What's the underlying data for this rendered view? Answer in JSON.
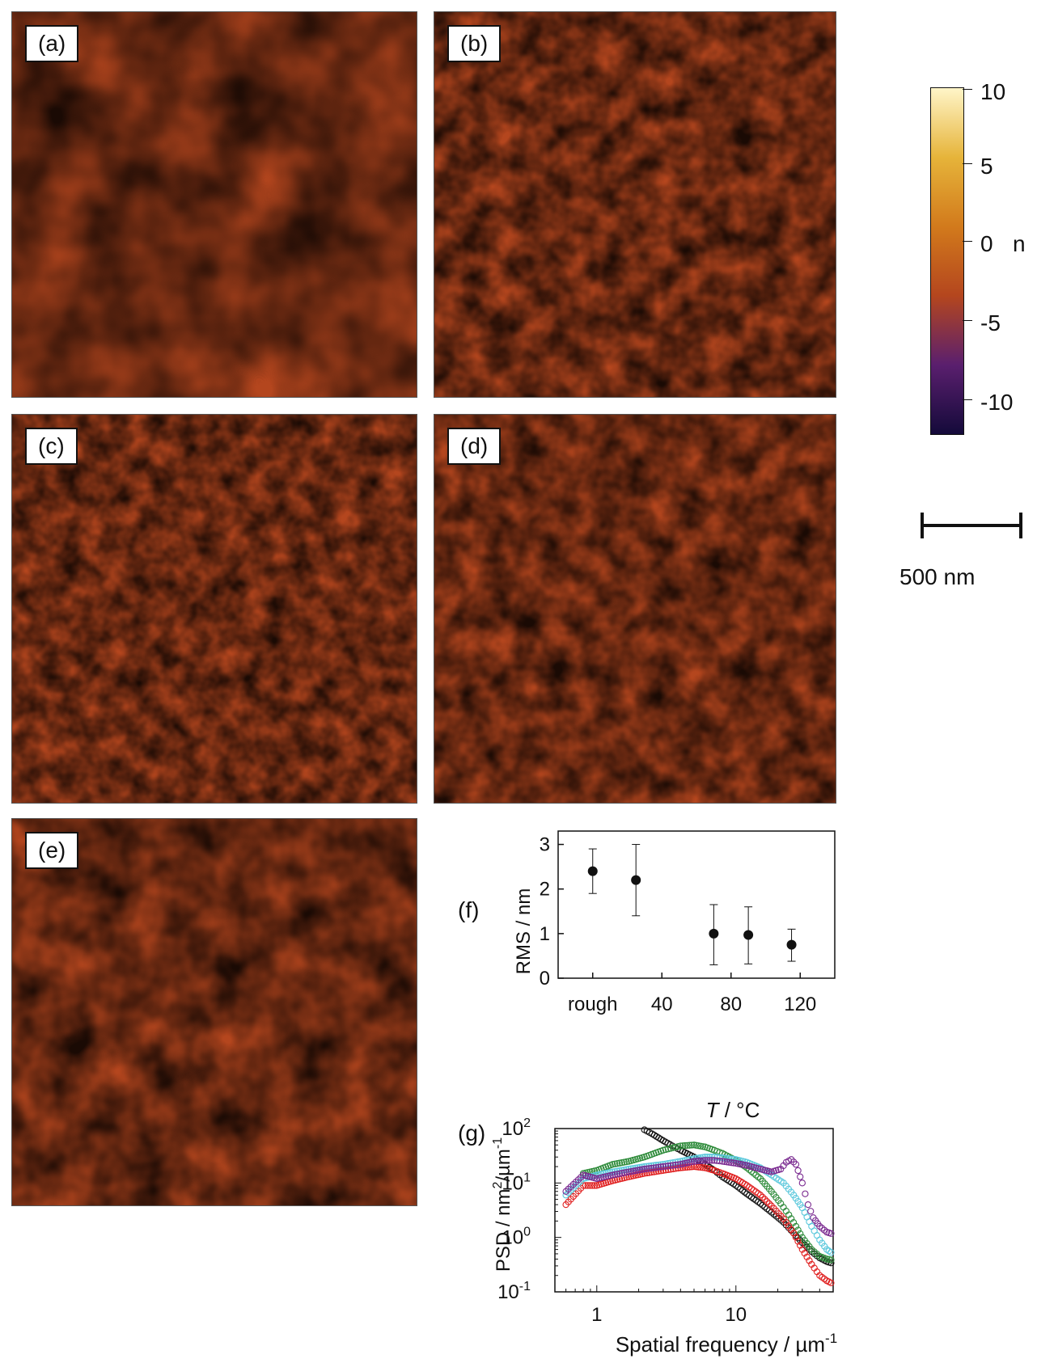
{
  "panels": [
    {
      "label": "(a)"
    },
    {
      "label": "(b)"
    },
    {
      "label": "(c)"
    },
    {
      "label": "(d)"
    },
    {
      "label": "(e)"
    }
  ],
  "colorbar": {
    "ticks": [
      "10",
      "5",
      "0",
      "-5",
      "-10"
    ],
    "unit_fragment": "n",
    "colors": [
      "#140a3a",
      "#5a1f6e",
      "#b4461e",
      "#d27a1c",
      "#e6b43a",
      "#fff5c8"
    ]
  },
  "scalebar": {
    "label": "500 nm"
  },
  "chart_data": [
    {
      "type": "scatter",
      "panel_label": "(f)",
      "ylabel": "RMS / nm",
      "xlabel": "T / °C",
      "xlabel_italic": "T",
      "xlabel_rest": " / °C",
      "x_tick_labels": [
        "rough",
        "40",
        "80",
        "120"
      ],
      "y_tick_labels": [
        "0",
        "1",
        "2",
        "3"
      ],
      "ylim": [
        0,
        3.3
      ],
      "xlim": [
        -20,
        140
      ],
      "points": [
        {
          "x": "rough",
          "y": 2.4,
          "err_low": 1.9,
          "err_high": 2.9
        },
        {
          "x": 25,
          "y": 2.2,
          "err_low": 1.4,
          "err_high": 3.0
        },
        {
          "x": 70,
          "y": 1.0,
          "err_low": 0.3,
          "err_high": 1.65
        },
        {
          "x": 90,
          "y": 0.97,
          "err_low": 0.32,
          "err_high": 1.6
        },
        {
          "x": 115,
          "y": 0.75,
          "err_low": 0.38,
          "err_high": 1.1
        }
      ]
    },
    {
      "type": "scatter",
      "panel_label": "(g)",
      "xlabel": "Spatial frequency / µm",
      "xlabel_sup": "-1",
      "ylabel_parts": [
        "PSD / nm",
        "2",
        "/µm",
        "-1"
      ],
      "x_scale": "log",
      "y_scale": "log",
      "xlim": [
        0.5,
        50
      ],
      "ylim": [
        0.1,
        100
      ],
      "x_tick_labels": [
        "1",
        "10"
      ],
      "y_tick_labels": [
        {
          "base": "10",
          "exp": "2"
        },
        {
          "base": "10",
          "exp": "1"
        },
        {
          "base": "10",
          "exp": "0"
        },
        {
          "base": "10",
          "exp": "-1"
        }
      ],
      "series": [
        {
          "color": "#111111",
          "points": [
            [
              2.2,
              95
            ],
            [
              2.5,
              80
            ],
            [
              3,
              60
            ],
            [
              3.5,
              48
            ],
            [
              4,
              40
            ],
            [
              5,
              30
            ],
            [
              6,
              22
            ],
            [
              7,
              17
            ],
            [
              8,
              13
            ],
            [
              10,
              9
            ],
            [
              12,
              6.3
            ],
            [
              15,
              4.2
            ],
            [
              18,
              2.9
            ],
            [
              22,
              1.9
            ],
            [
              26,
              1.2
            ],
            [
              30,
              0.8
            ],
            [
              35,
              0.55
            ],
            [
              40,
              0.42
            ],
            [
              45,
              0.36
            ],
            [
              50,
              0.33
            ]
          ]
        },
        {
          "color": "#2e8b3a",
          "points": [
            [
              0.8,
              15
            ],
            [
              1,
              17
            ],
            [
              1.3,
              22
            ],
            [
              1.7,
              25
            ],
            [
              2.2,
              30
            ],
            [
              3,
              40
            ],
            [
              4,
              48
            ],
            [
              5,
              50
            ],
            [
              6,
              46
            ],
            [
              7,
              40
            ],
            [
              8,
              35
            ],
            [
              10,
              26
            ],
            [
              12,
              19
            ],
            [
              15,
              12
            ],
            [
              18,
              7
            ],
            [
              21,
              4.2
            ],
            [
              24,
              2.6
            ],
            [
              27,
              1.6
            ],
            [
              30,
              1.0
            ],
            [
              35,
              0.6
            ],
            [
              40,
              0.45
            ],
            [
              45,
              0.4
            ],
            [
              50,
              0.38
            ]
          ]
        },
        {
          "color": "#e02020",
          "points": [
            [
              0.6,
              4
            ],
            [
              0.8,
              9
            ],
            [
              1,
              9
            ],
            [
              1.3,
              11
            ],
            [
              1.7,
              13
            ],
            [
              2.2,
              15
            ],
            [
              3,
              17
            ],
            [
              4,
              19
            ],
            [
              5,
              20
            ],
            [
              6,
              19
            ],
            [
              7,
              17
            ],
            [
              8,
              15
            ],
            [
              10,
              12
            ],
            [
              12,
              9
            ],
            [
              15,
              6
            ],
            [
              18,
              3.8
            ],
            [
              22,
              2.2
            ],
            [
              26,
              1.2
            ],
            [
              30,
              0.6
            ],
            [
              35,
              0.32
            ],
            [
              40,
              0.2
            ],
            [
              45,
              0.16
            ],
            [
              50,
              0.14
            ]
          ]
        },
        {
          "color": "#5bc8dc",
          "points": [
            [
              0.6,
              6
            ],
            [
              0.8,
              12
            ],
            [
              1,
              14
            ],
            [
              1.3,
              16
            ],
            [
              1.7,
              18
            ],
            [
              2.2,
              20
            ],
            [
              3,
              22
            ],
            [
              4,
              25
            ],
            [
              5,
              28
            ],
            [
              6,
              30
            ],
            [
              7,
              30
            ],
            [
              8,
              29
            ],
            [
              10,
              27
            ],
            [
              12,
              24
            ],
            [
              15,
              19
            ],
            [
              18,
              14
            ],
            [
              22,
              10
            ],
            [
              26,
              6
            ],
            [
              30,
              3.5
            ],
            [
              35,
              1.6
            ],
            [
              40,
              0.9
            ],
            [
              45,
              0.6
            ],
            [
              50,
              0.5
            ]
          ]
        },
        {
          "color": "#7a2a90",
          "points": [
            [
              0.6,
              7
            ],
            [
              0.8,
              14
            ],
            [
              1,
              12
            ],
            [
              1.3,
              14
            ],
            [
              1.7,
              16
            ],
            [
              2.2,
              18
            ],
            [
              3,
              20
            ],
            [
              4,
              22
            ],
            [
              5,
              25
            ],
            [
              6,
              26
            ],
            [
              7,
              26
            ],
            [
              8,
              25
            ],
            [
              10,
              23
            ],
            [
              12,
              21
            ],
            [
              15,
              18
            ],
            [
              18,
              16
            ],
            [
              21,
              18
            ],
            [
              23,
              24
            ],
            [
              25,
              27
            ],
            [
              27,
              22
            ],
            [
              30,
              10
            ],
            [
              33,
              4
            ],
            [
              36,
              2.3
            ],
            [
              40,
              1.6
            ],
            [
              45,
              1.25
            ],
            [
              50,
              1.15
            ]
          ]
        }
      ]
    }
  ]
}
